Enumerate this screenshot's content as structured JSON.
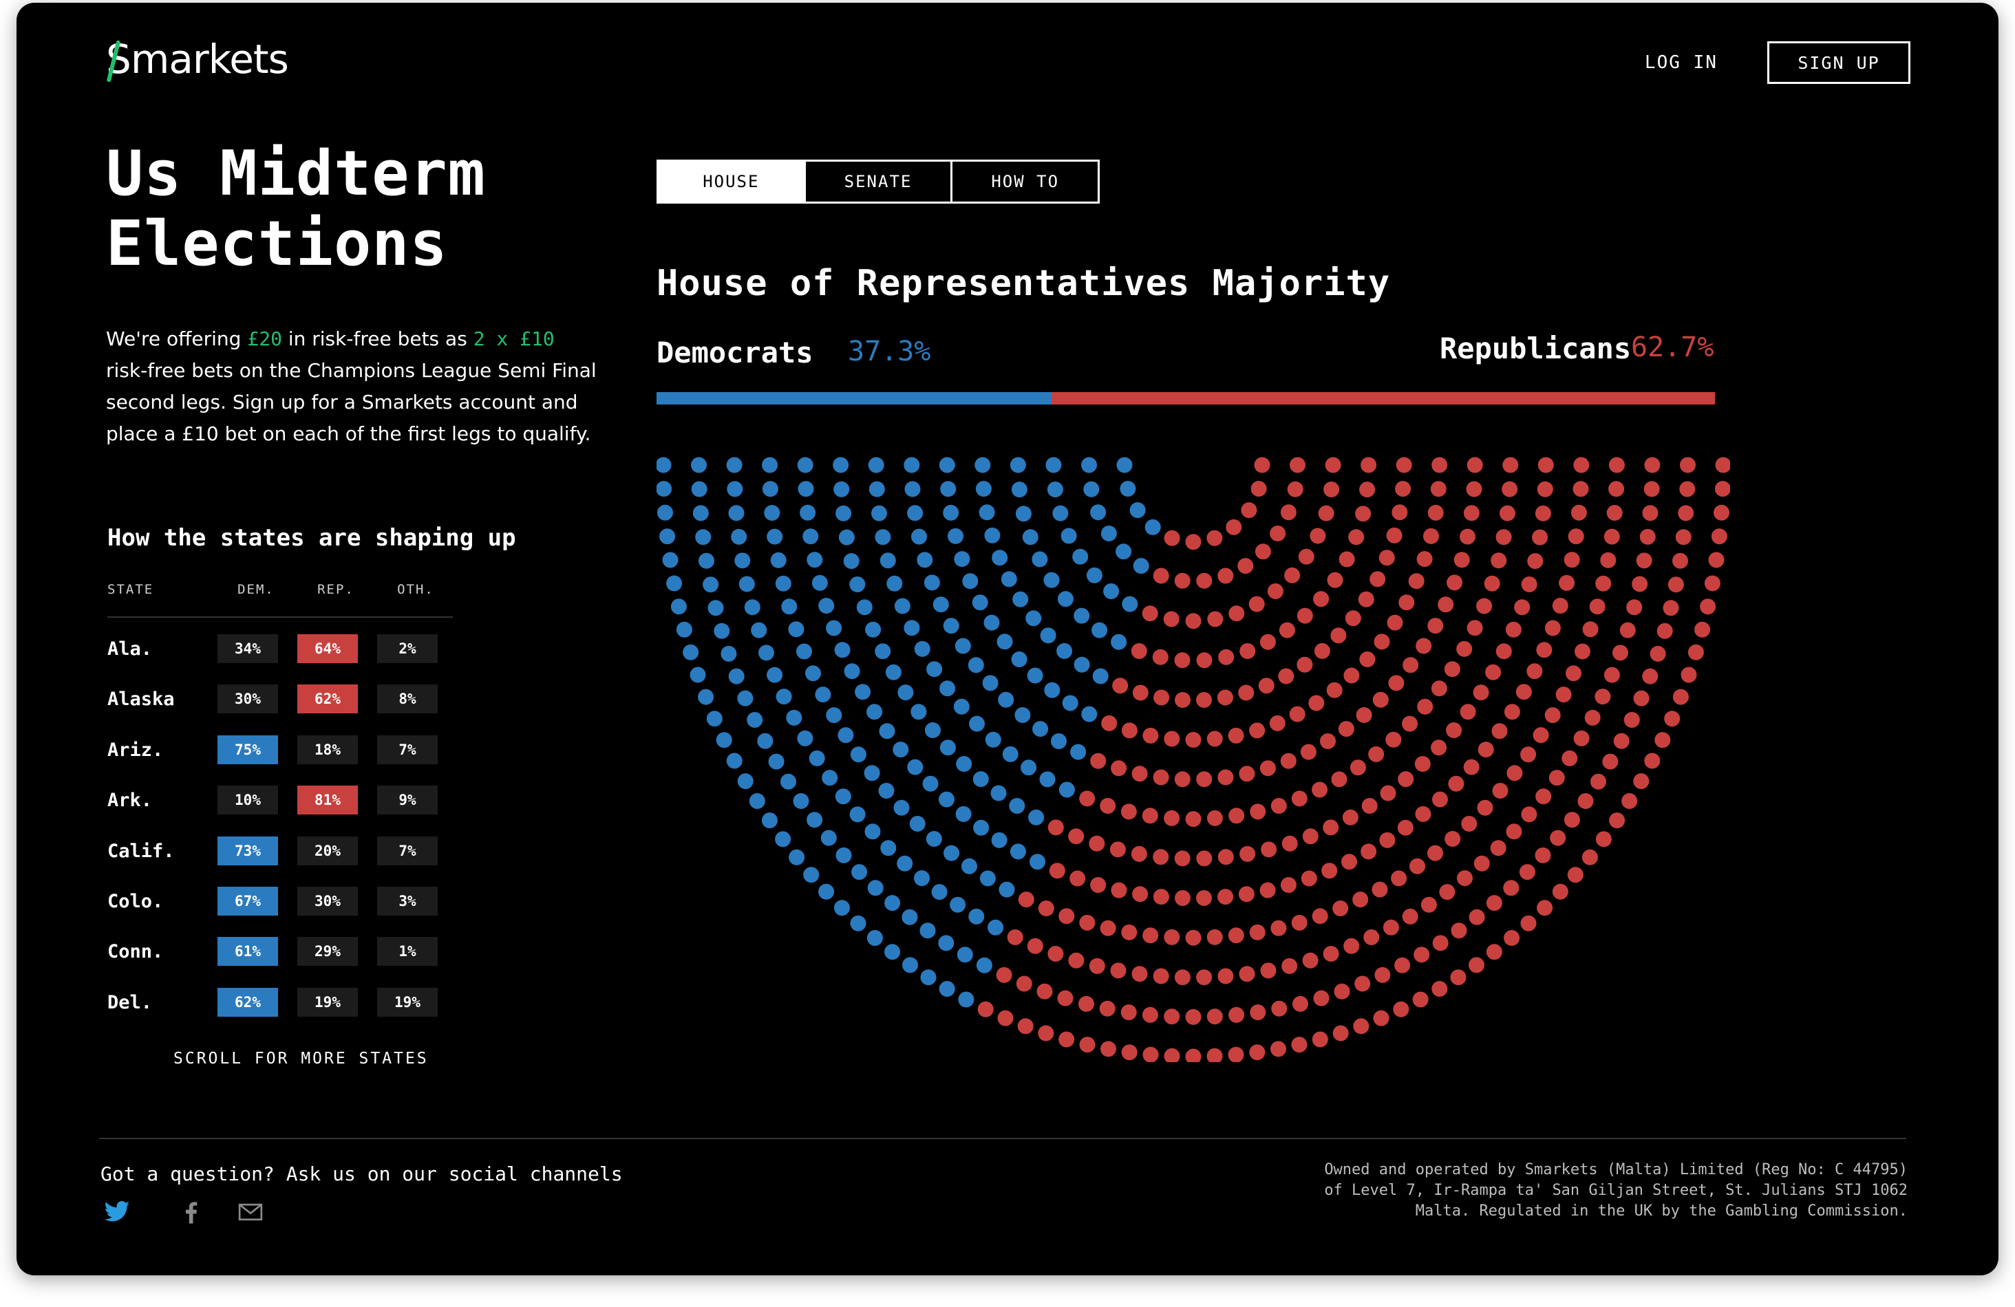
{
  "brand": {
    "logo_s": "S",
    "logo_rest": "markets"
  },
  "header": {
    "login_label": "LOG IN",
    "signup_label": "SIGN UP"
  },
  "page": {
    "title": "Us Midterm Elections",
    "promo": {
      "part1": "We're offering ",
      "amount": "£20",
      "part2": " in risk-free bets as ",
      "split": "2 x £10",
      "part3": " risk-free bets on the Champions League Semi Final second legs. Sign up for a Smarkets account and place a £10 bet on each of the first legs to qualify."
    }
  },
  "states": {
    "title": "How the states are shaping up",
    "headers": {
      "state": "STATE",
      "dem": "DEM.",
      "rep": "REP.",
      "oth": "OTH."
    },
    "rows": [
      {
        "name": "Ala.",
        "dem": "34%",
        "rep": "64%",
        "oth": "2%",
        "winner": "rep"
      },
      {
        "name": "Alaska",
        "dem": "30%",
        "rep": "62%",
        "oth": "8%",
        "winner": "rep"
      },
      {
        "name": "Ariz.",
        "dem": "75%",
        "rep": "18%",
        "oth": "7%",
        "winner": "dem"
      },
      {
        "name": "Ark.",
        "dem": "10%",
        "rep": "81%",
        "oth": "9%",
        "winner": "rep"
      },
      {
        "name": "Calif.",
        "dem": "73%",
        "rep": "20%",
        "oth": "7%",
        "winner": "dem"
      },
      {
        "name": "Colo.",
        "dem": "67%",
        "rep": "30%",
        "oth": "3%",
        "winner": "dem"
      },
      {
        "name": "Conn.",
        "dem": "61%",
        "rep": "29%",
        "oth": "1%",
        "winner": "dem"
      },
      {
        "name": "Del.",
        "dem": "62%",
        "rep": "19%",
        "oth": "19%",
        "winner": "dem"
      }
    ],
    "scroll_label": "SCROLL FOR MORE STATES"
  },
  "tabs": [
    {
      "label": "HOUSE",
      "active": true
    },
    {
      "label": "SENATE",
      "active": false
    },
    {
      "label": "HOW TO",
      "active": false
    }
  ],
  "chart": {
    "title": "House of Representatives Majority",
    "dem_label": "Democrats",
    "dem_pct": "37.3%",
    "rep_label": "Republicans",
    "rep_pct": "62.7%",
    "dem_share": 37.3,
    "rep_share": 62.7
  },
  "footer": {
    "question": "Got a question? Ask us on our social channels",
    "social": [
      "twitter-icon",
      "facebook-icon",
      "mail-icon"
    ],
    "legal": [
      "Owned and operated by Smarkets (Malta) Limited (Reg No: C 44795)",
      "of Level 7, Ir-Rampa ta' San Giljan Street, St. Julians STJ 1062",
      "Malta. Regulated in the UK by the Gambling Commission."
    ]
  },
  "colors": {
    "dem": "#2b7bc0",
    "rep": "#c9413f",
    "accent": "#1fbf6e",
    "background": "#000000"
  }
}
